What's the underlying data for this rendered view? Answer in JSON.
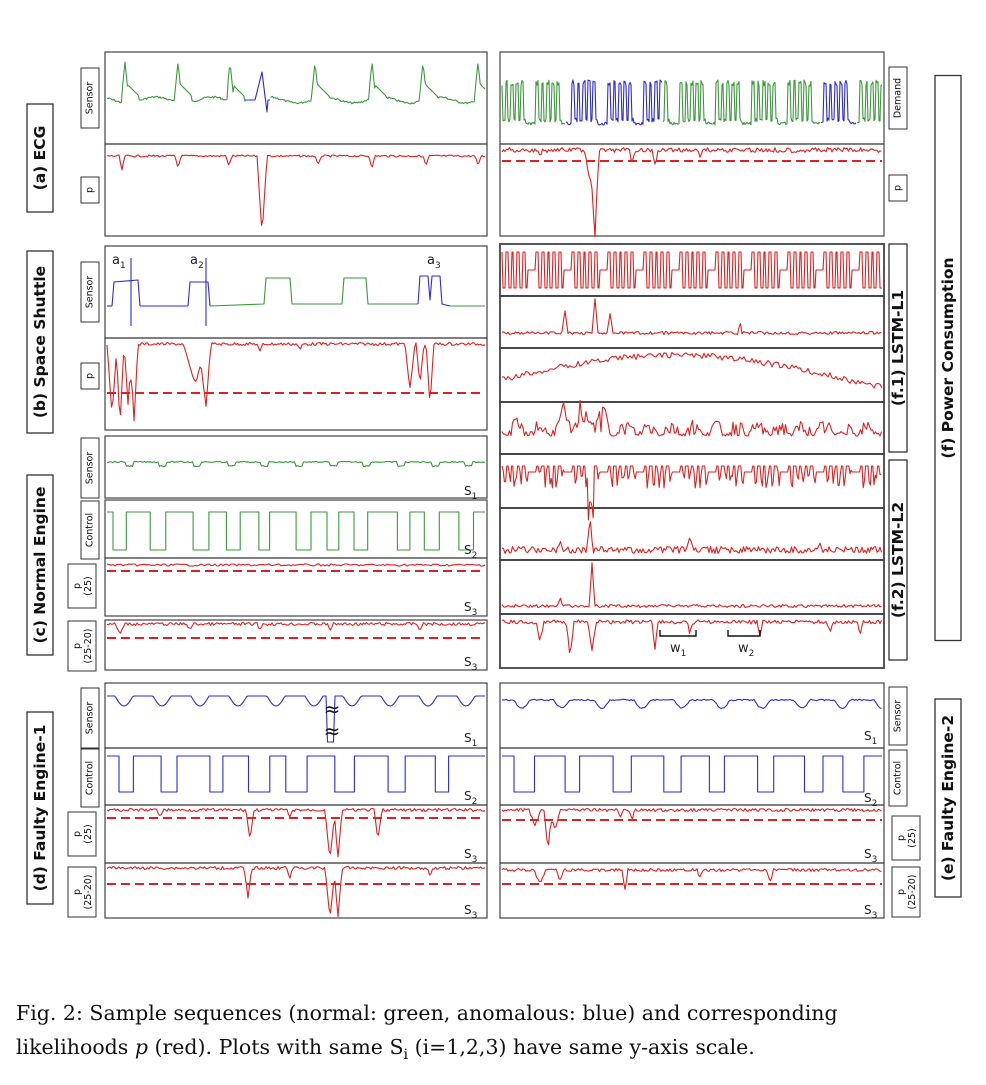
{
  "figure": {
    "group_labels": {
      "a": "(a) ECG",
      "b": "(b) Space Shuttle",
      "c": "(c) Normal Engine",
      "d": "(d) Faulty Engine-1",
      "e": "(e) Faulty Engine-2",
      "f": "(f) Power Consumption",
      "f1": "(f.1) LSTM-L1",
      "f2": "(f.2) LSTM-L2"
    },
    "panel_labels": {
      "sensor": "Sensor",
      "p": "p",
      "control": "Control",
      "p25_top": "p",
      "p25_bottom": "(25)",
      "p2520_top": "p",
      "p2520_bottom": "(25-20)",
      "demand": "Demand"
    },
    "scale_tags": {
      "s1": "S1",
      "s2": "S2",
      "s3": "S3"
    },
    "annotations": {
      "a1": "a1",
      "a2": "a2",
      "a3": "a3",
      "w1": "w1",
      "w2": "w2"
    }
  },
  "colors": {
    "normal": "#3a9a3a",
    "anomalous": "#2b2bd6",
    "likelihood": "#e02020"
  },
  "caption": {
    "line1_prefix": "Fig. 2:   Sample sequences (normal: green, anomalous: blue) and corresponding",
    "line2_a": "likelihoods",
    "line2_var": "p",
    "line2_b": "(red). Plots with same S",
    "line2_sub": "i",
    "line2_c": " (i=1,2,3) have same y-axis scale."
  },
  "chart_data": [
    {
      "panel": "a-sensor",
      "type": "line",
      "series": [
        {
          "name": "normal",
          "color": "green"
        },
        {
          "name": "anomalous",
          "color": "blue"
        }
      ]
    },
    {
      "panel": "a-p",
      "type": "line",
      "series": [
        {
          "name": "likelihood",
          "color": "red"
        }
      ]
    },
    {
      "panel": "b-sensor",
      "type": "line",
      "annotations": [
        "a1",
        "a2",
        "a3"
      ]
    },
    {
      "panel": "b-p",
      "type": "line",
      "threshold_line": true
    },
    {
      "panel": "c-sensor",
      "type": "line",
      "scale": "S1"
    },
    {
      "panel": "c-control",
      "type": "line",
      "scale": "S2"
    },
    {
      "panel": "c-p25",
      "type": "line",
      "scale": "S3",
      "threshold_line": true
    },
    {
      "panel": "c-p2520",
      "type": "line",
      "scale": "S3",
      "threshold_line": true
    },
    {
      "panel": "d-sensor",
      "type": "line",
      "scale": "S1"
    },
    {
      "panel": "d-control",
      "type": "line",
      "scale": "S2"
    },
    {
      "panel": "d-p25",
      "type": "line",
      "scale": "S3",
      "threshold_line": true
    },
    {
      "panel": "d-p2520",
      "type": "line",
      "scale": "S3",
      "threshold_line": true
    },
    {
      "panel": "f-demand",
      "type": "line"
    },
    {
      "panel": "f-p",
      "type": "line",
      "threshold_line": true
    },
    {
      "panel": "f1",
      "type": "line",
      "rows": 4
    },
    {
      "panel": "f2",
      "type": "line",
      "rows": 4,
      "annotations": [
        "w1",
        "w2"
      ]
    },
    {
      "panel": "e-sensor",
      "type": "line",
      "scale": "S1"
    },
    {
      "panel": "e-control",
      "type": "line",
      "scale": "S2"
    },
    {
      "panel": "e-p25",
      "type": "line",
      "scale": "S3",
      "threshold_line": true
    },
    {
      "panel": "e-p2520",
      "type": "line",
      "scale": "S3",
      "threshold_line": true
    }
  ]
}
